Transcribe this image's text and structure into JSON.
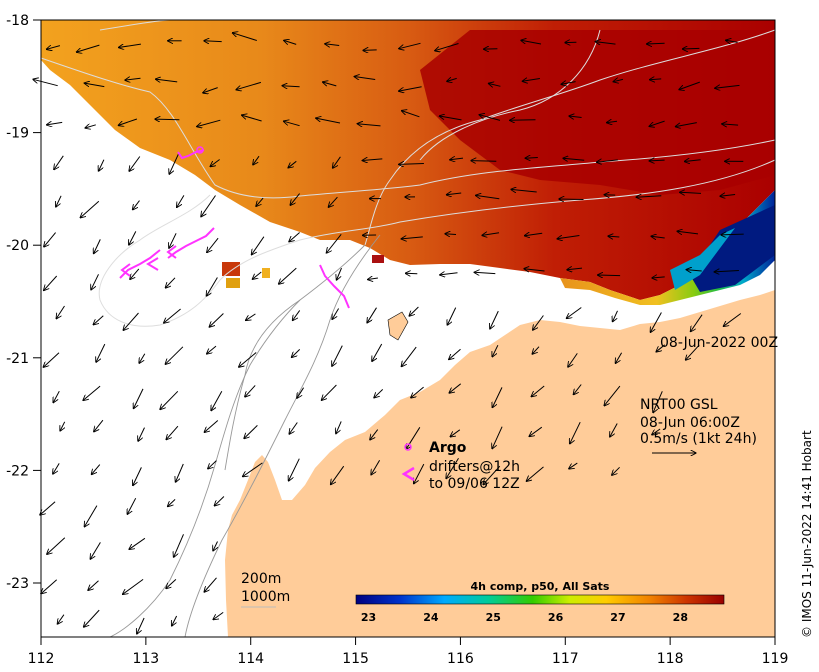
{
  "map": {
    "date_label": "08-Jun-2022 00Z",
    "current_info": [
      "NRT00 GSL",
      "08-Jun 06:00Z",
      "0.5m/s (1kt 24h)"
    ],
    "legend": {
      "argo": "Argo",
      "drifters": "drifters@12h",
      "drifters_to": "to 09/06 12Z"
    },
    "depth_labels": [
      "200m",
      "1000m"
    ],
    "colorbar": {
      "title": "4h comp, p50, All Sats",
      "ticks": [
        "23",
        "24",
        "25",
        "26",
        "27",
        "28"
      ],
      "min": 22.8,
      "max": 28.7
    },
    "x_ticks": [
      "112",
      "113",
      "114",
      "115",
      "116",
      "117",
      "118",
      "119"
    ],
    "y_ticks": [
      "-18",
      "-19",
      "-20",
      "-21",
      "-22",
      "-23"
    ],
    "credit": "© IMOS 11-Jun-2022 14:41 Hobart",
    "colors": {
      "land": "#FFCC99",
      "sea_warm": "#AA0000",
      "sea_mid": "#E67E1A",
      "sea_cool": "#00228A",
      "drifter": "#FF33FF"
    }
  }
}
